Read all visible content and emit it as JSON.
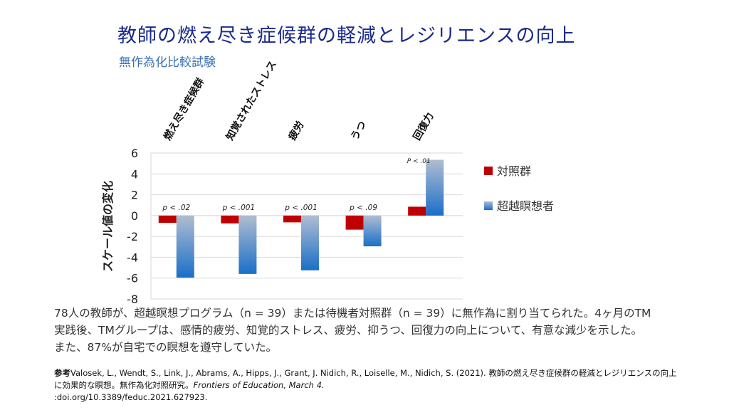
{
  "title": "教師の燃え尽き症候群の軽減とレジリエンスの向上",
  "subtitle": "無作為化比較試験",
  "chart_data": {
    "type": "bar",
    "categories": [
      "燃え尽き症候群",
      "知覚されたストレス",
      "疲労",
      "うつ",
      "回復力"
    ],
    "series": [
      {
        "name": "対照群",
        "values": [
          -0.7,
          -0.75,
          -0.65,
          -1.35,
          0.85
        ],
        "color": "#c00000"
      },
      {
        "name": "超越瞑想者",
        "values": [
          -5.95,
          -5.6,
          -5.25,
          -2.95,
          5.35
        ],
        "color": "#2e75c8"
      }
    ],
    "annotations": [
      "p < .02",
      "p < .001",
      "p < .001",
      "p < .09",
      "P < .01"
    ],
    "ylabel": "スケール値の変化",
    "ylim": [
      -8,
      6
    ],
    "yticks": [
      6,
      4,
      2,
      0,
      -2,
      -4,
      -6,
      -8
    ],
    "grid": true,
    "legend": "right"
  },
  "description": "78人の教師が、超越瞑想プログラム（n = 39）または待機者対照群（n = 39）に無作為に割り当てられた。4ヶ月のTM実践後、TMグループは、感情的疲労、知覚的ストレス、疲労、抑うつ、回復力の向上について、有意な減少を示した。また、87%が自宅での瞑想を遵守していた。",
  "reference": {
    "label": "参考",
    "authors": "Valosek, L., Wendt, S., Link, J., Abrams, A., Hipps, J., Grant, J. Nidich, R., Loiselle, M., Nidich, S. (2021). 教師の燃え尽き症候群の軽減とレジリエンスの向上に効果的な瞑想。無作為化対照研究。",
    "journal": "Frontiers of Education, March 4.",
    "doi": ":doi.org/10.3389/feduc.2021.627923."
  }
}
